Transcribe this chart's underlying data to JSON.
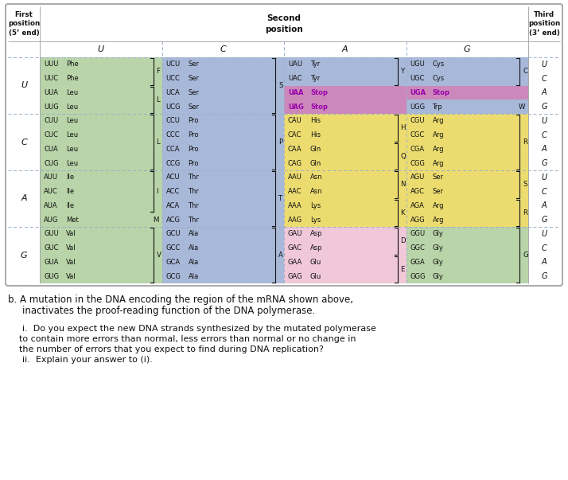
{
  "bg": "#ffffff",
  "color_map": {
    "green": "#b8d4a8",
    "blue": "#a8b8d8",
    "yellow": "#ecdC70",
    "pink": "#e8b0d0",
    "light_pink": "#f0c8d8",
    "white": "#ffffff"
  },
  "rows": {
    "U": {
      "U": {
        "codons": [
          [
            "UUU",
            "Phe"
          ],
          [
            "UUC",
            "Phe"
          ],
          [
            "UUA",
            "Leu"
          ],
          [
            "UUG",
            "Leu"
          ]
        ],
        "letters": [
          "F",
          "F",
          "L",
          "L"
        ],
        "bg": "green"
      },
      "C": {
        "codons": [
          [
            "UCU",
            "Ser"
          ],
          [
            "UCC",
            "Ser"
          ],
          [
            "UCA",
            "Ser"
          ],
          [
            "UCG",
            "Ser"
          ]
        ],
        "letters": [
          "S",
          "S",
          "S",
          "S"
        ],
        "bg": "blue"
      },
      "A": {
        "codons": [
          [
            "UAU",
            "Tyr"
          ],
          [
            "UAC",
            "Tyr"
          ],
          [
            "UAA",
            "Stop"
          ],
          [
            "UAG",
            "Stop"
          ]
        ],
        "letters": [
          "Y",
          "Y",
          "Stop",
          "Stop"
        ],
        "bg": "blue"
      },
      "G": {
        "codons": [
          [
            "UGU",
            "Cys"
          ],
          [
            "UGC",
            "Cys"
          ],
          [
            "UGA",
            "Stop"
          ],
          [
            "UGG",
            "Trp"
          ]
        ],
        "letters": [
          "C",
          "C",
          "Stop",
          "W"
        ],
        "bg": "blue"
      }
    },
    "C": {
      "U": {
        "codons": [
          [
            "CUU",
            "Leu"
          ],
          [
            "CUC",
            "Leu"
          ],
          [
            "CUA",
            "Leu"
          ],
          [
            "CUG",
            "Leu"
          ]
        ],
        "letters": [
          "L",
          "L",
          "L",
          "L"
        ],
        "bg": "green"
      },
      "C": {
        "codons": [
          [
            "CCU",
            "Pro"
          ],
          [
            "CCC",
            "Pro"
          ],
          [
            "CCA",
            "Pro"
          ],
          [
            "CCG",
            "Pro"
          ]
        ],
        "letters": [
          "P",
          "P",
          "P",
          "P"
        ],
        "bg": "blue"
      },
      "A": {
        "codons": [
          [
            "CAU",
            "His"
          ],
          [
            "CAC",
            "His"
          ],
          [
            "CAA",
            "Gln"
          ],
          [
            "CAG",
            "Gln"
          ]
        ],
        "letters": [
          "H",
          "H",
          "Q",
          "Q"
        ],
        "bg": "yellow"
      },
      "G": {
        "codons": [
          [
            "CGU",
            "Arg"
          ],
          [
            "CGC",
            "Arg"
          ],
          [
            "CGA",
            "Arg"
          ],
          [
            "CGG",
            "Arg"
          ]
        ],
        "letters": [
          "R",
          "R",
          "R",
          "R"
        ],
        "bg": "yellow"
      }
    },
    "A": {
      "U": {
        "codons": [
          [
            "AUU",
            "Ile"
          ],
          [
            "AUC",
            "Ile"
          ],
          [
            "AUA",
            "Ile"
          ],
          [
            "AUG",
            "Met"
          ]
        ],
        "letters": [
          "I",
          "I",
          "I",
          "M"
        ],
        "bg": "green"
      },
      "C": {
        "codons": [
          [
            "ACU",
            "Thr"
          ],
          [
            "ACC",
            "Thr"
          ],
          [
            "ACA",
            "Thr"
          ],
          [
            "ACG",
            "Thr"
          ]
        ],
        "letters": [
          "T",
          "T",
          "T",
          "T"
        ],
        "bg": "blue"
      },
      "A": {
        "codons": [
          [
            "AAU",
            "Asn"
          ],
          [
            "AAC",
            "Asn"
          ],
          [
            "AAA",
            "Lys"
          ],
          [
            "AAG",
            "Lys"
          ]
        ],
        "letters": [
          "N",
          "N",
          "K",
          "K"
        ],
        "bg": "yellow"
      },
      "G": {
        "codons": [
          [
            "AGU",
            "Ser"
          ],
          [
            "AGC",
            "Ser"
          ],
          [
            "AGA",
            "Arg"
          ],
          [
            "AGG",
            "Arg"
          ]
        ],
        "letters": [
          "S",
          "S",
          "R",
          "R"
        ],
        "bg": "yellow"
      }
    },
    "G": {
      "U": {
        "codons": [
          [
            "GUU",
            "Val"
          ],
          [
            "GUC",
            "Val"
          ],
          [
            "GUA",
            "Val"
          ],
          [
            "GUG",
            "Val"
          ]
        ],
        "letters": [
          "V",
          "V",
          "V",
          "V"
        ],
        "bg": "green"
      },
      "C": {
        "codons": [
          [
            "GCU",
            "Ala"
          ],
          [
            "GCC",
            "Ala"
          ],
          [
            "GCA",
            "Ala"
          ],
          [
            "GCG",
            "Ala"
          ]
        ],
        "letters": [
          "A",
          "A",
          "A",
          "A"
        ],
        "bg": "blue"
      },
      "A": {
        "codons": [
          [
            "GAU",
            "Asp"
          ],
          [
            "GAC",
            "Asp"
          ],
          [
            "GAA",
            "Glu"
          ],
          [
            "GAG",
            "Glu"
          ]
        ],
        "letters": [
          "D",
          "D",
          "E",
          "E"
        ],
        "bg": "light_pink"
      },
      "G": {
        "codons": [
          [
            "GGU",
            "Gly"
          ],
          [
            "GGC",
            "Gly"
          ],
          [
            "GGA",
            "Gly"
          ],
          [
            "GGG",
            "Gly"
          ]
        ],
        "letters": [
          "G",
          "G",
          "G",
          "G"
        ],
        "bg": "green"
      }
    }
  },
  "first_pos": [
    "U",
    "C",
    "A",
    "G"
  ],
  "second_pos": [
    "U",
    "C",
    "A",
    "G"
  ],
  "third_pos": [
    "U",
    "C",
    "A",
    "G"
  ],
  "stop_bg": "#cc88bb",
  "stop_text": "#9900aa",
  "dashed_color": "#9ab0c8",
  "border_color": "#aaaaaa"
}
